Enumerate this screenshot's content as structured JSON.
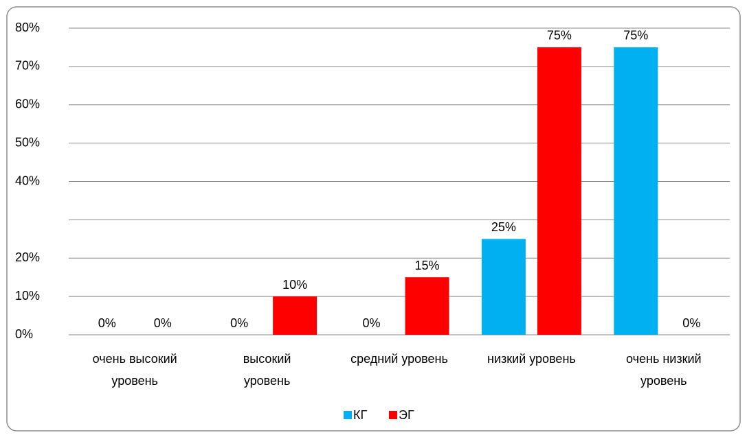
{
  "chart_data": {
    "type": "bar",
    "categories": [
      "очень высокий\nуровень",
      "высокий\nуровень",
      "средний уровень",
      "низкий уровень",
      "очень низкий\nуровень"
    ],
    "series": [
      {
        "name": "КГ",
        "color": "#00b0f0",
        "values": [
          0,
          0,
          0,
          25,
          75
        ],
        "value_labels": [
          "0%",
          "0%",
          "0%",
          "25%",
          "75%"
        ]
      },
      {
        "name": "ЭГ",
        "color": "#ff0000",
        "values": [
          0,
          10,
          15,
          75,
          0
        ],
        "value_labels": [
          "0%",
          "10%",
          "15%",
          "75%",
          "0%"
        ]
      }
    ],
    "ylim": [
      0,
      80
    ],
    "yticks": [
      {
        "value": 0,
        "label": "0%"
      },
      {
        "value": 10,
        "label": "10%"
      },
      {
        "value": 20,
        "label": "20%"
      },
      {
        "value": 40,
        "label": "40%"
      },
      {
        "value": 50,
        "label": "50%"
      },
      {
        "value": 60,
        "label": "60%"
      },
      {
        "value": 70,
        "label": "70%"
      },
      {
        "value": 80,
        "label": "80%"
      }
    ],
    "ygrid": [
      0,
      10,
      20,
      30,
      40,
      50,
      60,
      70,
      80
    ],
    "grid": true,
    "legend": "bottom"
  }
}
